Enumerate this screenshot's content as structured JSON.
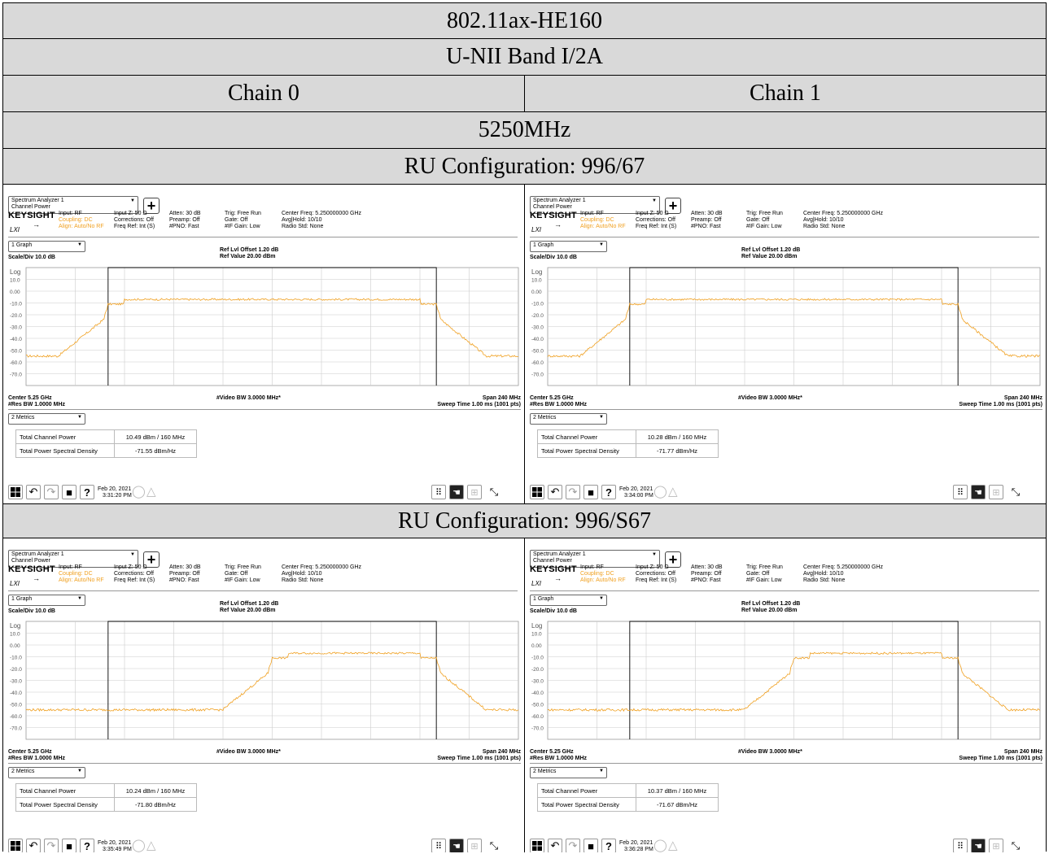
{
  "header": {
    "mode": "802.11ax-HE160",
    "band": "U-NII Band I/2A",
    "chain0": "Chain 0",
    "chain1": "Chain 1",
    "freq": "5250MHz"
  },
  "sections": [
    {
      "title": "RU Configuration: 996/67"
    },
    {
      "title": "RU Configuration: 996/S67"
    }
  ],
  "analyzer": {
    "window_title": "Spectrum Analyzer 1",
    "mode": "Channel Power",
    "brand": "KEYSIGHT",
    "input": "Input: RF",
    "coupling": "Coupling: DC",
    "align": "Align: Auto/No RF",
    "input_z": "Input Z: 50 Ω",
    "corrections": "Corrections: Off",
    "freq_ref": "Freq Ref: Int (S)",
    "atten": "Atten: 30 dB",
    "preamp": "Preamp: Off",
    "pno": "#PNO: Fast",
    "trig": "Trig: Free Run",
    "gate": "Gate: Off",
    "if_gain": "#IF Gain: Low",
    "center_freq": "Center Freq: 5.250000000 GHz",
    "avg_hold": "Avg|Hold: 10/10",
    "radio_std": "Radio Std: None",
    "lxi": "LXI",
    "graph_select": "1 Graph",
    "ref_offset": "Ref Lvl Offset 1.20 dB",
    "ref_value": "Ref Value 20.00 dBm",
    "scale": "Scale/Div 10.0 dB",
    "log": "Log",
    "y_ticks": [
      "10.0",
      "0.00",
      "-10.0",
      "-20.0",
      "-30.0",
      "-40.0",
      "-50.0",
      "-60.0",
      "-70.0"
    ],
    "center": "Center 5.25 GHz",
    "res_bw": "#Res BW 1.0000 MHz",
    "video_bw": "#Video BW 3.0000 MHz*",
    "span": "Span 240 MHz",
    "sweep": "Sweep Time 1.00 ms (1001 pts)",
    "metrics_select": "2 Metrics",
    "tcp_label": "Total Channel Power",
    "psd_label": "Total Power Spectral Density",
    "date": "Feb 20, 2021",
    "trace_color": "#f0a020"
  },
  "panels": [
    {
      "tcp": "10.49 dBm / 160 MHz",
      "psd": "-71.55 dBm/Hz",
      "time": "3:31:20 PM",
      "plateau_start": 5170,
      "plateau_end": 5330
    },
    {
      "tcp": "10.28 dBm / 160 MHz",
      "psd": "-71.77 dBm/Hz",
      "time": "3:34:00 PM",
      "plateau_start": 5170,
      "plateau_end": 5330
    },
    {
      "tcp": "10.24 dBm / 160 MHz",
      "psd": "-71.80 dBm/Hz",
      "time": "3:35:49 PM",
      "plateau_start": 5250,
      "plateau_end": 5330
    },
    {
      "tcp": "10.37 dBm / 160 MHz",
      "psd": "-71.67 dBm/Hz",
      "time": "3:36:28 PM",
      "plateau_start": 5250,
      "plateau_end": 5330
    }
  ],
  "chart_data": {
    "type": "line",
    "x_unit": "MHz",
    "xlim": [
      5130,
      5370
    ],
    "ylim": [
      -80,
      20
    ],
    "integration_bw": [
      5170,
      5330
    ],
    "plateau_level_dbm": -7,
    "noise_floor_dbm": -55
  }
}
